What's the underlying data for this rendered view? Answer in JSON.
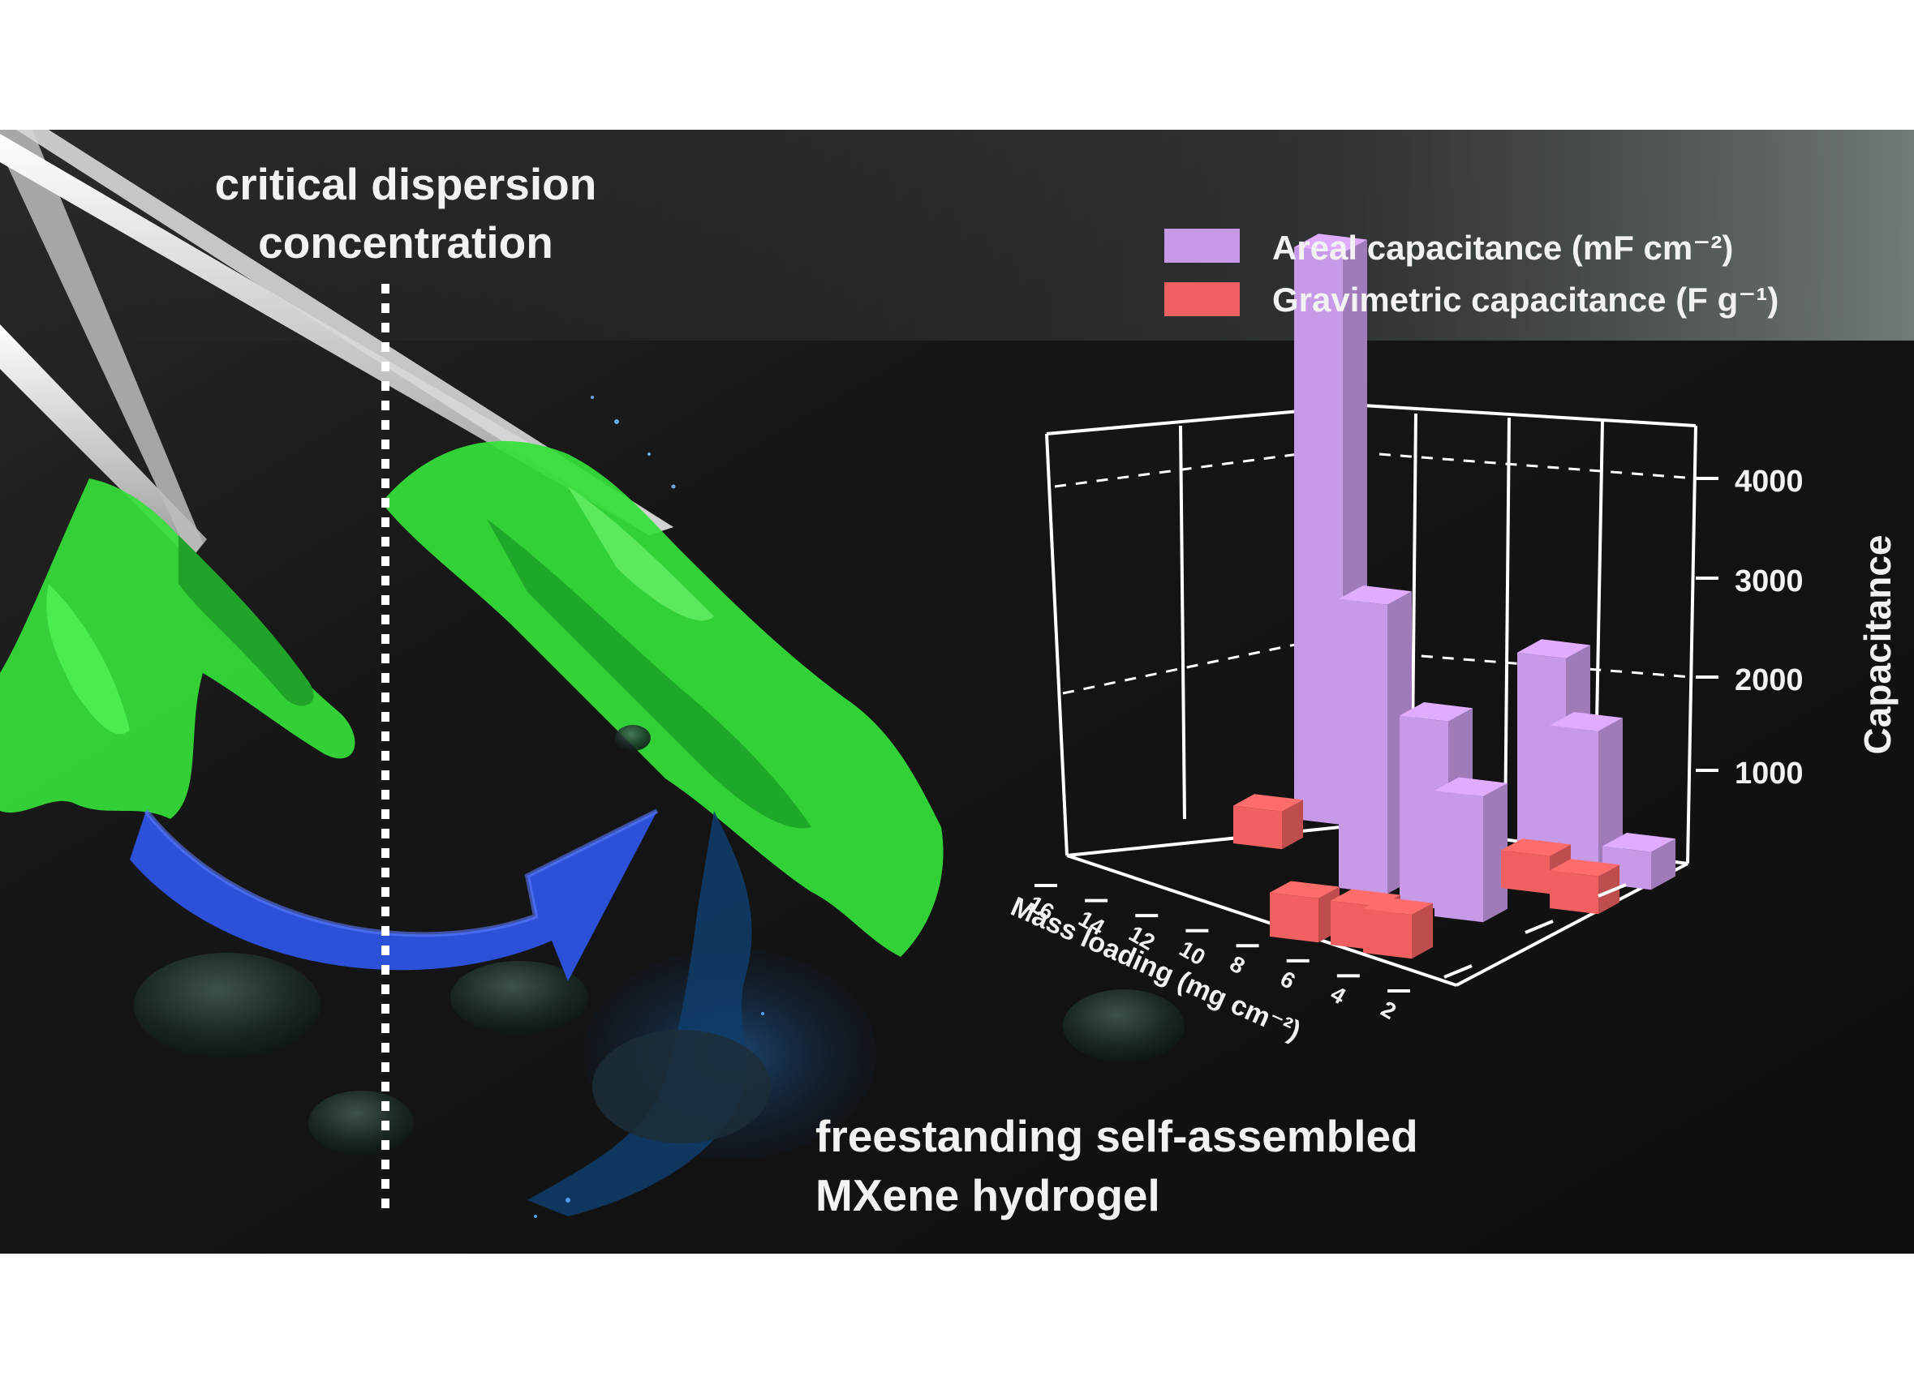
{
  "labels": {
    "top_line1": "critical dispersion",
    "top_line2": "concentration",
    "bottom_line1": "freestanding self-assembled",
    "bottom_line2": "MXene hydrogel"
  },
  "colors": {
    "areal": "#c79ae8",
    "gravimetric": "#f06060",
    "gel": "#35e03a",
    "arrow": "#2c50d8",
    "background": "#151515"
  },
  "chart_data": {
    "type": "bar",
    "variant": "3d-bar",
    "zlabel": "Capacitance",
    "xlabel": "Mass loading (mg cm⁻²)",
    "ztick_labels": [
      "1000",
      "2000",
      "3000",
      "4000"
    ],
    "x_tick_labels": [
      "16",
      "14",
      "12",
      "10",
      "8",
      "6",
      "4",
      "2"
    ],
    "legend_position": "top-right",
    "series": [
      {
        "legend_label": "Areal capacitance (mF cm⁻²)",
        "color": "#c79ae8",
        "points": [
          {
            "mass_loading": 10,
            "value": 4550
          },
          {
            "mass_loading": 8,
            "value": 2300
          },
          {
            "mass_loading": 6,
            "value": 1500
          },
          {
            "mass_loading": 4,
            "value": 1000
          },
          {
            "mass_loading": 3,
            "value": 1550
          },
          {
            "mass_loading": 2,
            "value": 1100
          },
          {
            "mass_loading": 1,
            "value": 300
          }
        ]
      },
      {
        "legend_label": "Gravimetric capacitance (F g⁻¹)",
        "color": "#f06060",
        "points": [
          {
            "mass_loading": 14,
            "value": 300
          },
          {
            "mass_loading": 7,
            "value": 350
          },
          {
            "mass_loading": 5.5,
            "value": 350
          },
          {
            "mass_loading": 5,
            "value": 350
          },
          {
            "mass_loading": 3,
            "value": 300
          },
          {
            "mass_loading": 2,
            "value": 300
          }
        ]
      }
    ]
  }
}
